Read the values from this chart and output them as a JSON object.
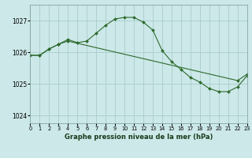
{
  "line1_x": [
    0,
    1,
    2,
    3,
    4,
    5,
    6,
    7,
    8,
    9,
    10,
    11,
    12,
    13,
    14,
    15,
    16,
    17,
    18,
    19,
    20,
    21,
    22,
    23
  ],
  "line1_y": [
    1025.9,
    1025.9,
    1026.1,
    1026.25,
    1026.4,
    1026.3,
    1026.35,
    1026.6,
    1026.85,
    1027.05,
    1027.1,
    1027.1,
    1026.95,
    1026.7,
    1026.05,
    1025.7,
    1025.45,
    1025.2,
    1025.05,
    1024.85,
    1024.75,
    1024.75,
    1024.9,
    1025.25
  ],
  "line2_x": [
    0,
    1,
    2,
    3,
    4,
    22,
    23
  ],
  "line2_y": [
    1025.9,
    1025.9,
    1026.1,
    1026.25,
    1026.35,
    1025.1,
    1025.3
  ],
  "line_color": "#2d6a2d",
  "bg_color": "#cce8e8",
  "grid_color": "#aacccc",
  "title": "Graphe pression niveau de la mer (hPa)",
  "xlim": [
    0,
    23
  ],
  "ylim": [
    1023.75,
    1027.5
  ],
  "yticks": [
    1024,
    1025,
    1026,
    1027
  ],
  "xticks": [
    0,
    1,
    2,
    3,
    4,
    5,
    6,
    7,
    8,
    9,
    10,
    11,
    12,
    13,
    14,
    15,
    16,
    17,
    18,
    19,
    20,
    21,
    22,
    23
  ]
}
